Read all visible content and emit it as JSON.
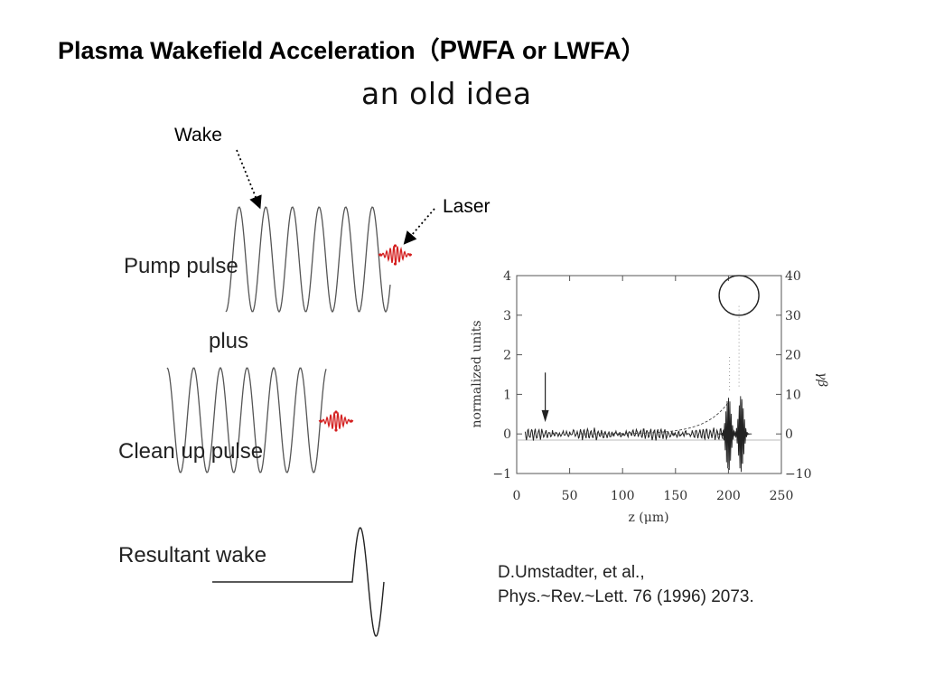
{
  "slide": {
    "title_part1": "Plasma Wakefield Acceleration（",
    "title_part2": "PWFA",
    "title_part3": " or LWFA）",
    "subtitle": "an old idea"
  },
  "diagram": {
    "wake_label": "Wake",
    "laser_label": "Laser",
    "pump_label": "Pump pulse",
    "plus_label": "plus",
    "clean_label": "Clean up pulse",
    "result_label": "Resultant wake",
    "laser_color": "#d42020"
  },
  "chart_data": {
    "type": "line",
    "xlabel": "z (μm)",
    "ylabel": "normalized units",
    "ylabel_right": "γβ",
    "xlim": [
      0,
      250
    ],
    "ylim": [
      -1,
      4
    ],
    "ylim_right": [
      -10,
      40
    ],
    "x_ticks": [
      "0",
      "50",
      "100",
      "150",
      "200",
      "250"
    ],
    "y_ticks": [
      "−1",
      "0",
      "1",
      "2",
      "3",
      "4"
    ],
    "y_ticks_right": [
      "−10",
      "0",
      "10",
      "20",
      "30",
      "40"
    ],
    "annotations": [
      "arrow at z ≈ 27",
      "circle around peak near z ≈ 210, γβ ≈ 35"
    ]
  },
  "citation": {
    "line1": "D.Umstadter, et al.,",
    "line2": "Phys.~Rev.~Lett. 76 (1996) 2073."
  }
}
